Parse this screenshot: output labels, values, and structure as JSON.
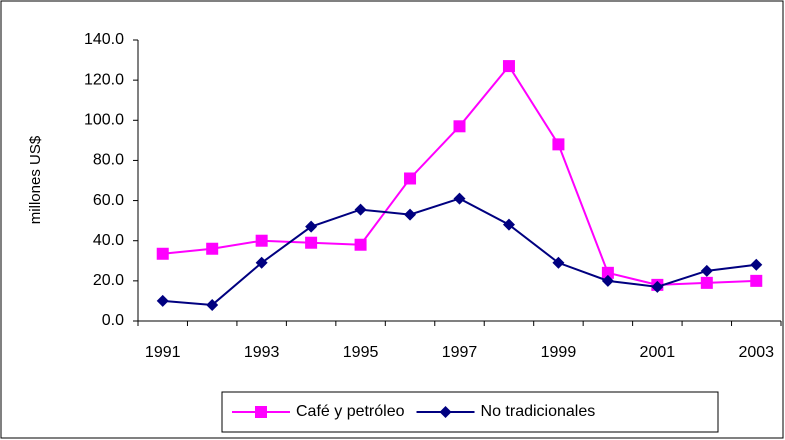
{
  "chart_data": {
    "type": "line",
    "y_label": "millones US$",
    "categories": [
      "1991",
      null,
      "1993",
      null,
      "1995",
      null,
      "1997",
      null,
      "1999",
      null,
      "2001",
      null,
      "2003"
    ],
    "series": [
      {
        "name": "Café y petróleo",
        "color": "#ff00ff",
        "marker": "square",
        "values": [
          33.5,
          36,
          40,
          39,
          38,
          71,
          97,
          127,
          88,
          24,
          18,
          19,
          20
        ]
      },
      {
        "name": "No tradicionales",
        "color": "#000080",
        "marker": "diamond",
        "values": [
          10,
          8,
          29,
          47,
          55.5,
          53,
          61,
          48,
          29,
          20,
          17,
          25,
          28
        ]
      }
    ],
    "ylim": [
      0,
      140
    ],
    "yticks": [
      {
        "value": 0,
        "label": "0.0"
      },
      {
        "value": 20,
        "label": "20.0"
      },
      {
        "value": 40,
        "label": "40.0"
      },
      {
        "value": 60,
        "label": "60.0"
      },
      {
        "value": 80,
        "label": "80.0"
      },
      {
        "value": 100,
        "label": "100.0"
      },
      {
        "value": 120,
        "label": "120.0"
      },
      {
        "value": 140,
        "label": "140.0"
      }
    ],
    "grid": false,
    "legend": "bottom"
  }
}
